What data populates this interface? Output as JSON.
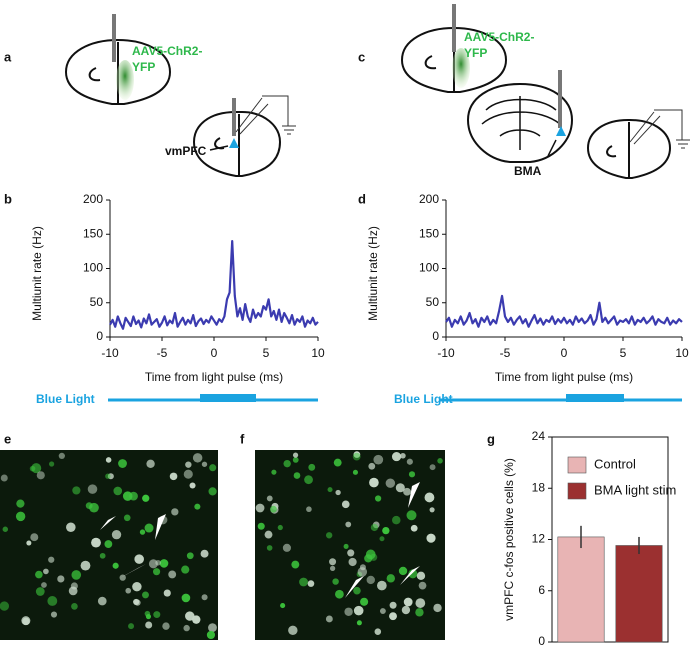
{
  "panels": {
    "a": "a",
    "b": "b",
    "c": "c",
    "d": "d",
    "e": "e",
    "f": "f",
    "g": "g"
  },
  "diagram": {
    "virus_a_1": "AAV5-ChR2-",
    "virus_a_2": "YFP",
    "virus_c_1": "AAV5-ChR2-",
    "virus_c_2": "YFP",
    "vmpfc": "vmPFC",
    "bma": "BMA",
    "light_left": "Blue Light",
    "light_right": "Blue Light"
  },
  "chart_data": [
    {
      "type": "line",
      "ylabel": "Multiunit rate (Hz)",
      "xlabel": "Time from light pulse (ms)",
      "xlim": [
        -10,
        10
      ],
      "xticks": [
        -10,
        -5,
        0,
        5,
        10
      ],
      "ylim": [
        0,
        200
      ],
      "yticks": [
        0,
        50,
        100,
        150,
        200
      ],
      "x": [
        -10,
        -9.75,
        -9.5,
        -9.25,
        -9,
        -8.75,
        -8.5,
        -8.25,
        -8,
        -7.75,
        -7.5,
        -7.25,
        -7,
        -6.75,
        -6.5,
        -6.25,
        -6,
        -5.75,
        -5.5,
        -5.25,
        -5,
        -4.75,
        -4.5,
        -4.25,
        -4,
        -3.75,
        -3.5,
        -3.25,
        -3,
        -2.75,
        -2.5,
        -2.25,
        -2,
        -1.75,
        -1.5,
        -1.25,
        -1,
        -0.75,
        -0.5,
        -0.25,
        0,
        0.25,
        0.5,
        0.75,
        1,
        1.25,
        1.5,
        1.75,
        2,
        2.25,
        2.5,
        2.75,
        3,
        3.25,
        3.5,
        3.75,
        4,
        4.25,
        4.5,
        4.75,
        5,
        5.25,
        5.5,
        5.75,
        6,
        6.25,
        6.5,
        6.75,
        7,
        7.25,
        7.5,
        7.75,
        8,
        8.25,
        8.5,
        8.75,
        9,
        9.25,
        9.5,
        9.75,
        10
      ],
      "series": [
        {
          "color": "#3b3bb0",
          "values": [
            18,
            25,
            15,
            30,
            20,
            12,
            28,
            22,
            16,
            30,
            19,
            24,
            14,
            27,
            20,
            33,
            18,
            22,
            26,
            15,
            21,
            30,
            17,
            24,
            20,
            35,
            15,
            22,
            28,
            18,
            25,
            20,
            32,
            16,
            23,
            27,
            19,
            25,
            21,
            30,
            24,
            18,
            26,
            22,
            30,
            55,
            65,
            140,
            60,
            30,
            42,
            25,
            48,
            30,
            22,
            40,
            28,
            35,
            30,
            45,
            40,
            55,
            30,
            38,
            25,
            40,
            22,
            35,
            28,
            20,
            32,
            18,
            26,
            22,
            30,
            15,
            24,
            20,
            28,
            18,
            22
          ]
        }
      ]
    },
    {
      "type": "line",
      "ylabel": "Multiunit rate (Hz)",
      "xlabel": "Time from light pulse (ms)",
      "xlim": [
        -10,
        10
      ],
      "xticks": [
        -10,
        -5,
        0,
        5,
        10
      ],
      "ylim": [
        0,
        200
      ],
      "yticks": [
        0,
        50,
        100,
        150,
        200
      ],
      "x": [
        -10,
        -9.75,
        -9.5,
        -9.25,
        -9,
        -8.75,
        -8.5,
        -8.25,
        -8,
        -7.75,
        -7.5,
        -7.25,
        -7,
        -6.75,
        -6.5,
        -6.25,
        -6,
        -5.75,
        -5.5,
        -5.25,
        -5,
        -4.75,
        -4.5,
        -4.25,
        -4,
        -3.75,
        -3.5,
        -3.25,
        -3,
        -2.75,
        -2.5,
        -2.25,
        -2,
        -1.75,
        -1.5,
        -1.25,
        -1,
        -0.75,
        -0.5,
        -0.25,
        0,
        0.25,
        0.5,
        0.75,
        1,
        1.25,
        1.5,
        1.75,
        2,
        2.25,
        2.5,
        2.75,
        3,
        3.25,
        3.5,
        3.75,
        4,
        4.25,
        4.5,
        4.75,
        5,
        5.25,
        5.5,
        5.75,
        6,
        6.25,
        6.5,
        6.75,
        7,
        7.25,
        7.5,
        7.75,
        8,
        8.25,
        8.5,
        8.75,
        9,
        9.25,
        9.5,
        9.75,
        10
      ],
      "series": [
        {
          "color": "#3b3bb0",
          "values": [
            22,
            28,
            15,
            25,
            20,
            30,
            18,
            24,
            35,
            20,
            26,
            15,
            28,
            22,
            30,
            18,
            25,
            20,
            38,
            60,
            30,
            22,
            28,
            18,
            25,
            30,
            20,
            26,
            15,
            24,
            32,
            20,
            27,
            18,
            25,
            22,
            30,
            19,
            26,
            21,
            28,
            20,
            25,
            18,
            30,
            22,
            27,
            20,
            24,
            32,
            18,
            26,
            50,
            22,
            28,
            20,
            25,
            30,
            18,
            24,
            22,
            26,
            20,
            30,
            18,
            25,
            22,
            28,
            20,
            24,
            30,
            18,
            26,
            22,
            20,
            28,
            18,
            24,
            20,
            26,
            22
          ]
        }
      ]
    },
    {
      "type": "bar",
      "ylabel": "vmPFC c-fos positive cells (%)",
      "categories": [
        "Control",
        "BMA light stim"
      ],
      "values": [
        12.3,
        11.3
      ],
      "errors": [
        1.3,
        1.0
      ],
      "colors": [
        "#e8b4b4",
        "#9b3030"
      ],
      "ylim": [
        0,
        24
      ],
      "yticks": [
        0,
        6,
        12,
        18,
        24
      ]
    }
  ]
}
